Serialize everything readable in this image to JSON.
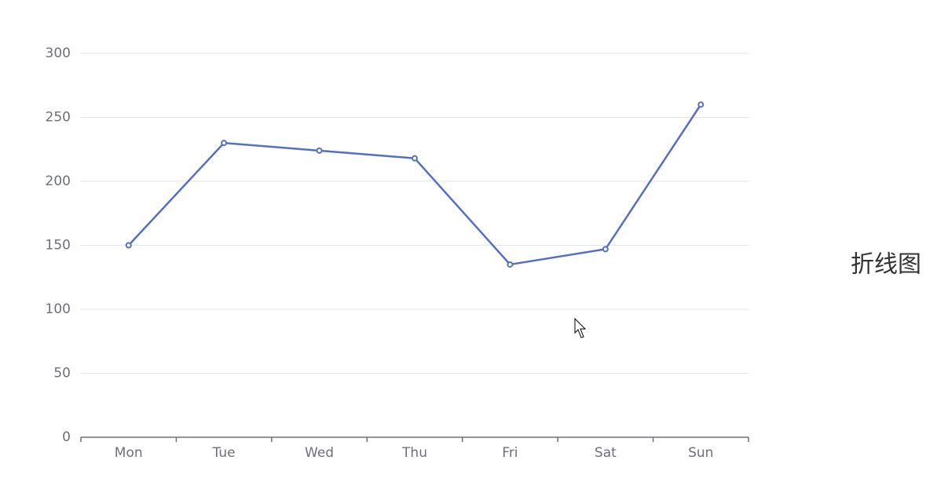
{
  "chart_data": {
    "type": "line",
    "categories": [
      "Mon",
      "Tue",
      "Wed",
      "Thu",
      "Fri",
      "Sat",
      "Sun"
    ],
    "values": [
      150,
      230,
      224,
      218,
      135,
      147,
      260
    ],
    "color": "#5470c6",
    "ylim": [
      0,
      300
    ],
    "yticks": [
      0,
      50,
      100,
      150,
      200,
      250,
      300
    ],
    "grid": true
  },
  "caption": "折线图"
}
